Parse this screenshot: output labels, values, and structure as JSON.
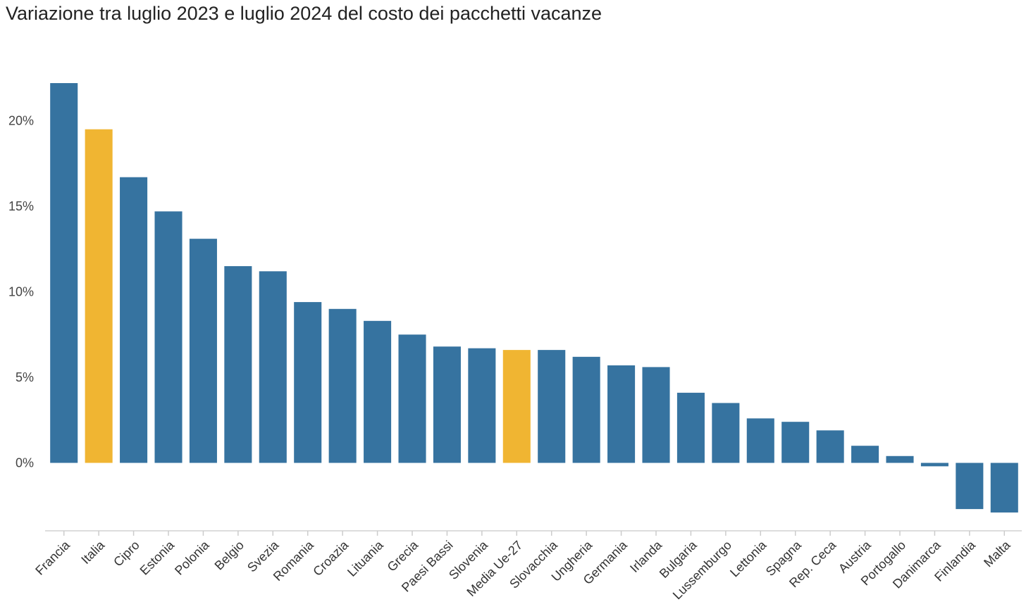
{
  "chart_data": {
    "type": "bar",
    "title": "Variazione tra luglio 2023 e luglio 2024 del costo dei pacchetti vacanze",
    "xlabel": "",
    "ylabel": "",
    "ylim": [
      -4,
      24
    ],
    "yticks": [
      0,
      5,
      10,
      15,
      20
    ],
    "ytick_labels": [
      "0%",
      "5%",
      "10%",
      "15%",
      "20%"
    ],
    "grid": false,
    "legend": "none",
    "colors": {
      "default": "#3673a0",
      "highlight": "#f0b532"
    },
    "highlighted": [
      "Italia",
      "Media Ue-27"
    ],
    "categories": [
      "Francia",
      "Italia",
      "Cipro",
      "Estonia",
      "Polonia",
      "Belgio",
      "Svezia",
      "Romania",
      "Croazia",
      "Lituania",
      "Grecia",
      "Paesi Bassi",
      "Slovenia",
      "Media Ue-27",
      "Slovacchia",
      "Ungheria",
      "Germania",
      "Irlanda",
      "Bulgaria",
      "Lussemburgo",
      "Lettonia",
      "Spagna",
      "Rep. Ceca",
      "Austria",
      "Portogallo",
      "Danimarca",
      "Finlandia",
      "Malta"
    ],
    "values": [
      22.2,
      19.5,
      16.7,
      14.7,
      13.1,
      11.5,
      11.2,
      9.4,
      9.0,
      8.3,
      7.5,
      6.8,
      6.7,
      6.6,
      6.6,
      6.2,
      5.7,
      5.6,
      4.1,
      3.5,
      2.6,
      2.4,
      1.9,
      1.0,
      0.4,
      -0.2,
      -2.7,
      -2.9
    ]
  }
}
